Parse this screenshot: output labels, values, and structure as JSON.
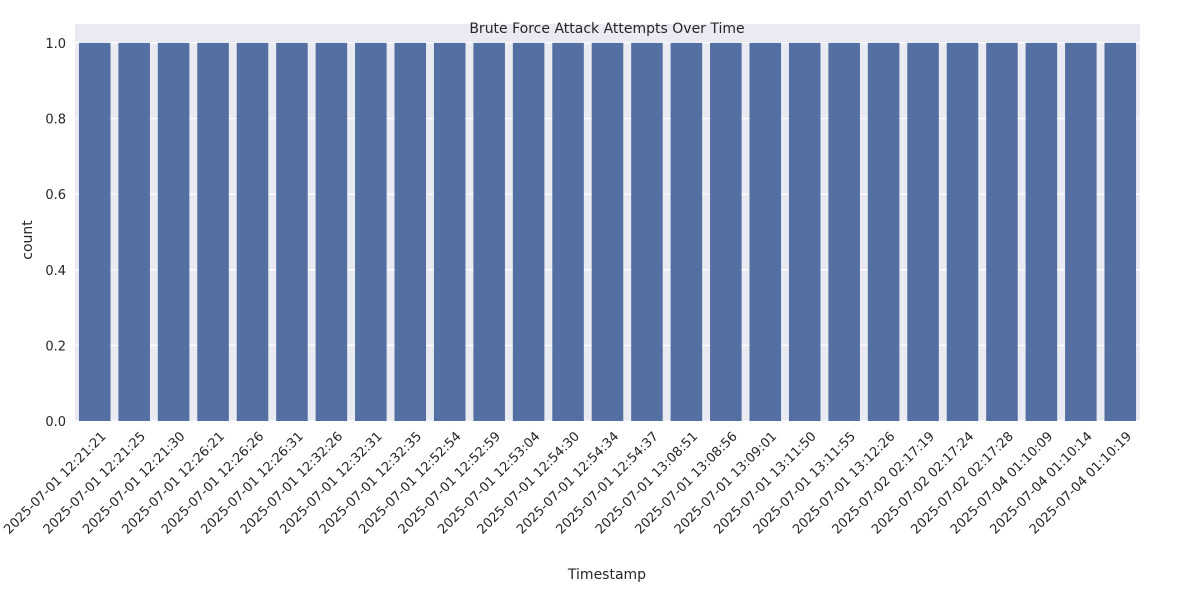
{
  "chart_data": {
    "type": "bar",
    "title": "Brute Force Attack Attempts Over Time",
    "xlabel": "Timestamp",
    "ylabel": "count",
    "ylim": [
      0,
      1.05
    ],
    "yticks": [
      "0.0",
      "0.2",
      "0.4",
      "0.6",
      "0.8",
      "1.0"
    ],
    "grid": true,
    "bar_color": "#5470a3",
    "background_color": "#eaeaf2",
    "categories": [
      "2025-07-01 12:21:21",
      "2025-07-01 12:21:25",
      "2025-07-01 12:21:30",
      "2025-07-01 12:26:21",
      "2025-07-01 12:26:26",
      "2025-07-01 12:26:31",
      "2025-07-01 12:32:26",
      "2025-07-01 12:32:31",
      "2025-07-01 12:32:35",
      "2025-07-01 12:52:54",
      "2025-07-01 12:52:59",
      "2025-07-01 12:53:04",
      "2025-07-01 12:54:30",
      "2025-07-01 12:54:34",
      "2025-07-01 12:54:37",
      "2025-07-01 13:08:51",
      "2025-07-01 13:08:56",
      "2025-07-01 13:09:01",
      "2025-07-01 13:11:50",
      "2025-07-01 13:11:55",
      "2025-07-01 13:12:26",
      "2025-07-02 02:17:19",
      "2025-07-02 02:17:24",
      "2025-07-02 02:17:28",
      "2025-07-04 01:10:09",
      "2025-07-04 01:10:14",
      "2025-07-04 01:10:19"
    ],
    "values": [
      1,
      1,
      1,
      1,
      1,
      1,
      1,
      1,
      1,
      1,
      1,
      1,
      1,
      1,
      1,
      1,
      1,
      1,
      1,
      1,
      1,
      1,
      1,
      1,
      1,
      1,
      1
    ]
  }
}
